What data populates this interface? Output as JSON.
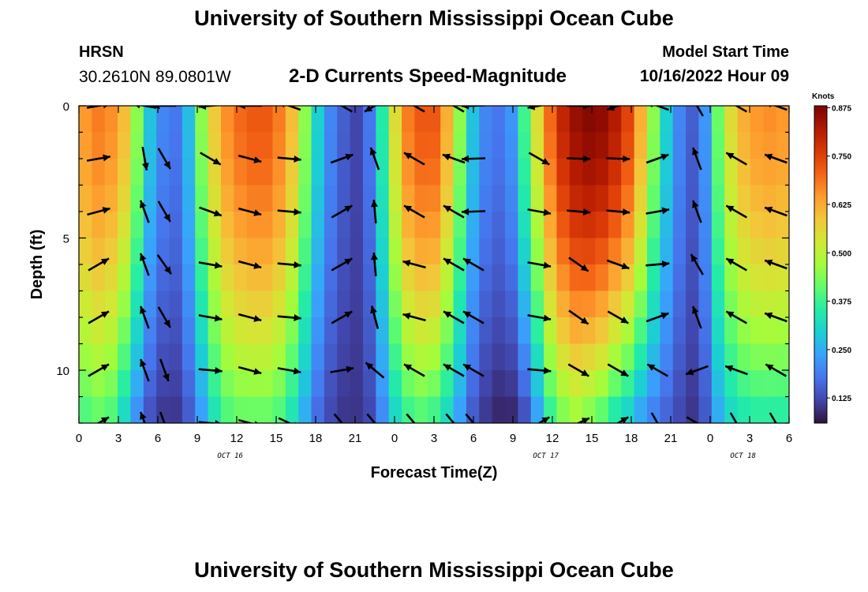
{
  "header": {
    "title": "University of Southern Mississippi Ocean Cube",
    "station": "HRSN",
    "coords": "30.2610N  89.0801W",
    "subtitle": "2-D Currents Speed-Magnitude",
    "model_start_label": "Model Start Time",
    "model_start_value": "10/16/2022 Hour 09"
  },
  "footer": {
    "title": "University of Southern Mississippi Ocean Cube"
  },
  "chart_data": {
    "type": "heatmap",
    "title": "2-D Currents Speed-Magnitude",
    "xlabel": "Forecast Time(Z)",
    "ylabel": "Depth (ft)",
    "x_tick_labels": [
      "0",
      "3",
      "6",
      "9",
      "12",
      "15",
      "18",
      "21",
      "0",
      "3",
      "6",
      "9",
      "12",
      "15",
      "18",
      "21",
      "0",
      "3",
      "6"
    ],
    "x_hours_range": [
      0,
      54
    ],
    "day_labels": [
      {
        "label": "OCT 16",
        "hour": 11.5
      },
      {
        "label": "OCT 17",
        "hour": 35.5
      },
      {
        "label": "OCT 18",
        "hour": 50.5
      }
    ],
    "y_tick_labels": [
      "0",
      "5",
      "10"
    ],
    "y_tick_values": [
      0,
      5,
      10
    ],
    "ylim": [
      0,
      12
    ],
    "colorbar": {
      "label": "Knots",
      "ticks": [
        "0.125",
        "0.250",
        "0.375",
        "0.500",
        "0.625",
        "0.750",
        "0.875"
      ],
      "tick_values": [
        0.125,
        0.25,
        0.375,
        0.5,
        0.625,
        0.75,
        0.875
      ],
      "range": [
        0.06,
        0.88
      ],
      "colors": [
        "#30123b",
        "#4145ab",
        "#4675ed",
        "#39a2fc",
        "#1bcfd4",
        "#24eca6",
        "#61fc6c",
        "#a4fc3b",
        "#d1e834",
        "#f3c63a",
        "#fe9b2d",
        "#f36315",
        "#d93806",
        "#b11901",
        "#7a0402"
      ]
    },
    "speed_profiles": {
      "hours": [
        0,
        1,
        2,
        3,
        4,
        5,
        6,
        7,
        8,
        9,
        10,
        11,
        12,
        13,
        14,
        15,
        16,
        17,
        18,
        19,
        20,
        21,
        22,
        23,
        24,
        25,
        26,
        27,
        28,
        29,
        30,
        31,
        32,
        33,
        34,
        35,
        36,
        37,
        38,
        39,
        40,
        41,
        42,
        43,
        44,
        45,
        46,
        47,
        48,
        49,
        50,
        51,
        52,
        53,
        54
      ],
      "surface": [
        0.65,
        0.68,
        0.66,
        0.6,
        0.45,
        0.28,
        0.2,
        0.18,
        0.27,
        0.45,
        0.58,
        0.66,
        0.7,
        0.72,
        0.72,
        0.68,
        0.6,
        0.45,
        0.3,
        0.2,
        0.15,
        0.12,
        0.18,
        0.35,
        0.55,
        0.68,
        0.72,
        0.72,
        0.62,
        0.45,
        0.28,
        0.2,
        0.18,
        0.22,
        0.38,
        0.55,
        0.7,
        0.8,
        0.85,
        0.87,
        0.86,
        0.82,
        0.75,
        0.62,
        0.45,
        0.3,
        0.2,
        0.15,
        0.22,
        0.42,
        0.55,
        0.62,
        0.65,
        0.66,
        0.65
      ],
      "bottom": [
        0.38,
        0.4,
        0.38,
        0.3,
        0.2,
        0.13,
        0.1,
        0.1,
        0.14,
        0.22,
        0.32,
        0.38,
        0.4,
        0.4,
        0.4,
        0.38,
        0.32,
        0.24,
        0.16,
        0.12,
        0.1,
        0.1,
        0.12,
        0.2,
        0.3,
        0.36,
        0.38,
        0.36,
        0.3,
        0.22,
        0.14,
        0.1,
        0.08,
        0.08,
        0.12,
        0.22,
        0.35,
        0.42,
        0.45,
        0.42,
        0.38,
        0.32,
        0.28,
        0.22,
        0.18,
        0.15,
        0.12,
        0.1,
        0.14,
        0.24,
        0.3,
        0.33,
        0.34,
        0.34,
        0.34
      ]
    },
    "vectors": {
      "hours": [
        1.5,
        5,
        6.5,
        10,
        13,
        16,
        20,
        22.5,
        25.5,
        28.5,
        30,
        35,
        38,
        41,
        44,
        47,
        50,
        53
      ],
      "depths": [
        0,
        2,
        4,
        6,
        8,
        10,
        12
      ],
      "angles": [
        [
          10,
          170,
          180,
          185,
          180,
          160,
          150,
          210,
          150,
          150,
          182,
          190,
          0,
          200,
          160,
          120,
          150,
          160
        ],
        [
          10,
          280,
          300,
          330,
          345,
          355,
          20,
          110,
          150,
          160,
          182,
          330,
          358,
          358,
          20,
          110,
          150,
          160
        ],
        [
          15,
          110,
          300,
          340,
          345,
          355,
          30,
          95,
          150,
          150,
          182,
          350,
          355,
          355,
          10,
          110,
          150,
          160
        ],
        [
          30,
          110,
          305,
          350,
          345,
          355,
          30,
          95,
          165,
          150,
          150,
          350,
          325,
          340,
          5,
          120,
          150,
          160
        ],
        [
          30,
          110,
          300,
          350,
          345,
          355,
          30,
          105,
          165,
          150,
          150,
          350,
          325,
          330,
          20,
          110,
          150,
          160
        ],
        [
          30,
          110,
          290,
          355,
          345,
          350,
          10,
          140,
          150,
          150,
          150,
          355,
          330,
          330,
          150,
          200,
          160,
          150
        ],
        [
          30,
          110,
          290,
          355,
          345,
          335,
          310,
          310,
          310,
          310,
          310,
          30,
          25,
          30,
          300,
          330,
          300,
          300
        ]
      ]
    }
  }
}
